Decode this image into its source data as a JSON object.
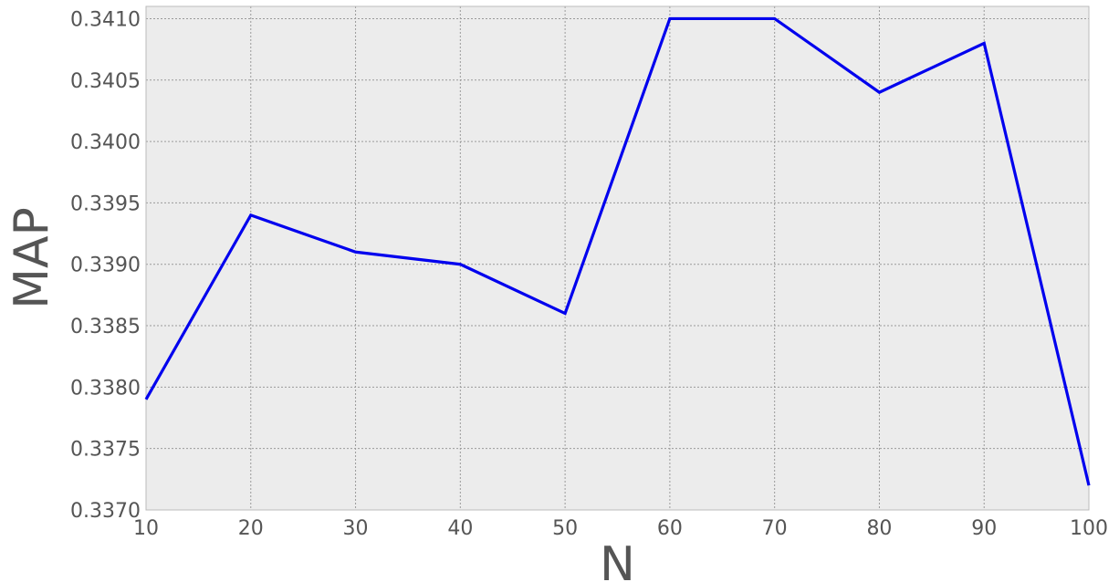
{
  "chart_data": {
    "type": "line",
    "title": "",
    "xlabel": "N",
    "ylabel": "MAP",
    "x": [
      10,
      20,
      30,
      40,
      50,
      60,
      70,
      80,
      90,
      100
    ],
    "series": [
      {
        "values": [
          0.3379,
          0.3394,
          0.3391,
          0.339,
          0.3386,
          0.341,
          0.341,
          0.3404,
          0.3408,
          0.3372
        ],
        "color": "#0000ee"
      }
    ],
    "xlim": [
      10,
      100
    ],
    "ylim": [
      0.337,
      0.3411
    ],
    "xticks": [
      "10",
      "20",
      "30",
      "40",
      "50",
      "60",
      "70",
      "80",
      "90",
      "100"
    ],
    "yticks": [
      "0.3370",
      "0.3375",
      "0.3380",
      "0.3385",
      "0.3390",
      "0.3395",
      "0.3400",
      "0.3405",
      "0.3410"
    ],
    "grid": true,
    "background_color": "#ececec",
    "frame_color": "#bbbbbb",
    "grid_color": "#9a9a9a"
  }
}
